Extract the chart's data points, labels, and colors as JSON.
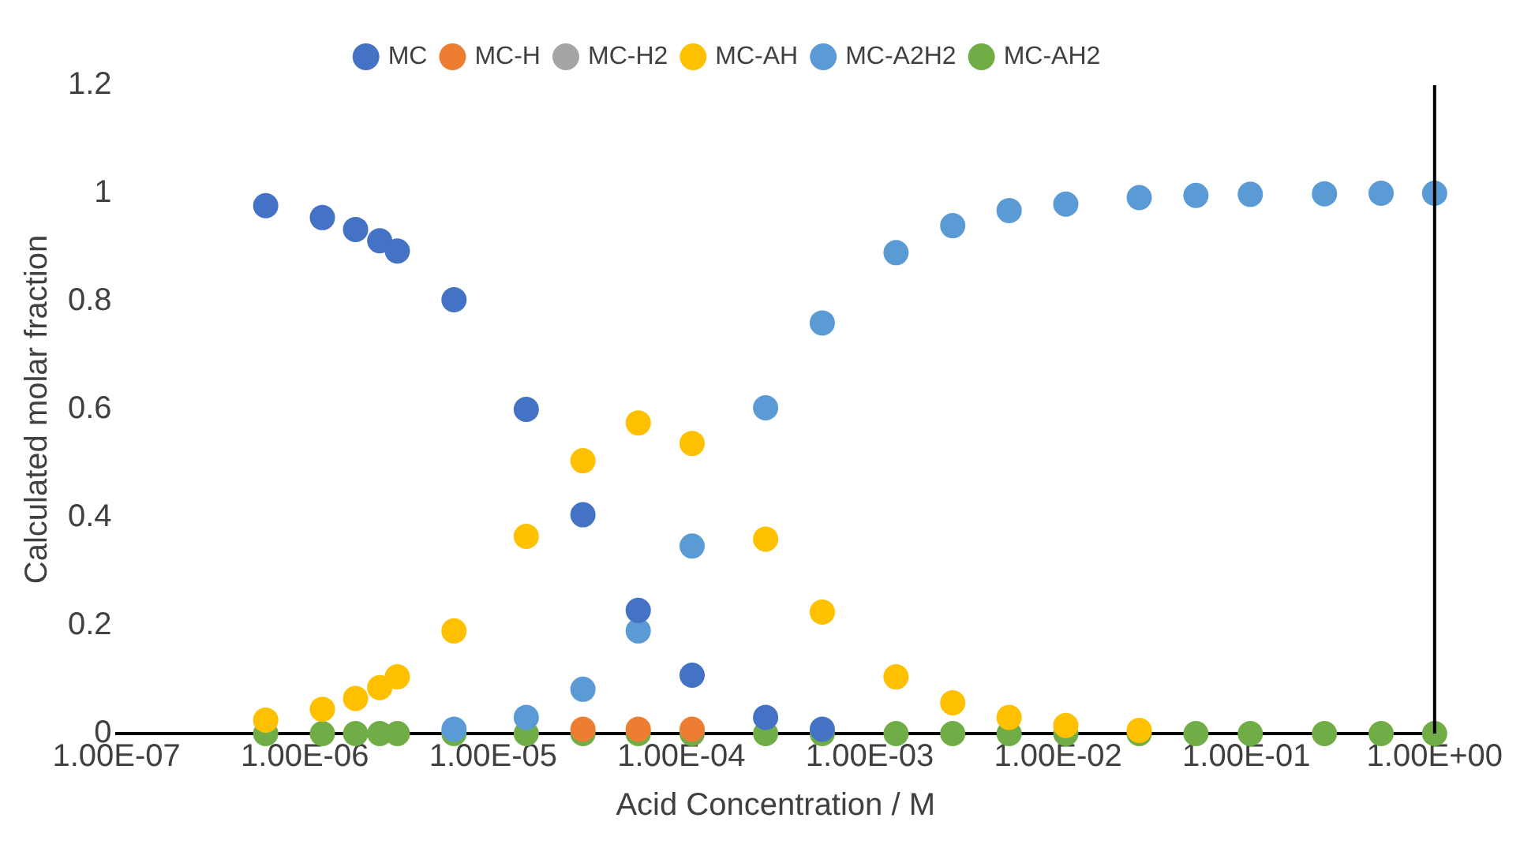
{
  "chart_data": {
    "type": "scatter",
    "xlabel": "Acid Concentration / M",
    "ylabel": "Calculated molar fraction",
    "log": "x",
    "x": [
      6.2e-07,
      1.24e-06,
      1.86e-06,
      2.5e-06,
      3.1e-06,
      6.2e-06,
      1.5e-05,
      3e-05,
      5.9e-05,
      0.000114,
      0.00028,
      0.00056,
      0.00138,
      0.00276,
      0.0055,
      0.011,
      0.027,
      0.054,
      0.105,
      0.26,
      0.52,
      1
    ],
    "series": [
      {
        "name": "MC",
        "color": "#4472c4",
        "values": [
          0.977,
          0.955,
          0.933,
          0.912,
          0.893,
          0.803,
          0.6,
          0.405,
          0.228,
          0.108,
          0.03,
          0.008,
          null,
          null,
          null,
          null,
          null,
          null,
          null,
          null,
          null,
          null
        ]
      },
      {
        "name": "MC-H",
        "color": "#ed7d31",
        "values": [
          null,
          null,
          null,
          null,
          null,
          null,
          null,
          0.008,
          0.008,
          0.008,
          null,
          null,
          null,
          null,
          null,
          null,
          null,
          null,
          null,
          null,
          null,
          null
        ]
      },
      {
        "name": "MC-H2",
        "color": "#a5a5a5",
        "values": [
          null,
          null,
          null,
          null,
          null,
          null,
          null,
          null,
          null,
          null,
          null,
          null,
          null,
          null,
          null,
          null,
          null,
          null,
          null,
          null,
          null,
          null
        ]
      },
      {
        "name": "MC-AH",
        "color": "#ffc000",
        "values": [
          0.025,
          0.045,
          0.065,
          0.085,
          0.105,
          0.19,
          0.365,
          0.505,
          0.575,
          0.537,
          0.36,
          0.225,
          0.105,
          0.057,
          0.03,
          0.015,
          0.006,
          null,
          null,
          null,
          null,
          null
        ]
      },
      {
        "name": "MC-A2H2",
        "color": "#5b9bd5",
        "values": [
          null,
          null,
          null,
          null,
          null,
          0.008,
          0.03,
          0.082,
          0.19,
          0.347,
          0.603,
          0.76,
          0.89,
          0.94,
          0.968,
          0.98,
          0.992,
          0.996,
          0.998,
          0.999,
          1,
          1
        ]
      },
      {
        "name": "MC-AH2",
        "color": "#70ad47",
        "values": [
          0,
          0,
          0,
          0,
          0,
          0,
          0,
          0,
          0,
          0,
          0,
          0,
          0,
          0,
          0,
          0,
          0,
          0,
          0,
          0,
          0,
          0
        ]
      }
    ],
    "xlim": [
      1e-07,
      1
    ],
    "xticks": [
      {
        "value": 1e-07,
        "label": "1.00E-07"
      },
      {
        "value": 1e-06,
        "label": "1.00E-06"
      },
      {
        "value": 1e-05,
        "label": "1.00E-05"
      },
      {
        "value": 0.0001,
        "label": "1.00E-04"
      },
      {
        "value": 0.001,
        "label": "1.00E-03"
      },
      {
        "value": 0.01,
        "label": "1.00E-02"
      },
      {
        "value": 0.1,
        "label": "1.00E-01"
      },
      {
        "value": 1,
        "label": "1.00E+00"
      }
    ],
    "ylim": [
      0,
      1.2
    ],
    "yticks": [
      0,
      0.2,
      0.4,
      0.6,
      0.8,
      1,
      1.2
    ],
    "grid": false,
    "legend": "top",
    "marker": "circle"
  }
}
